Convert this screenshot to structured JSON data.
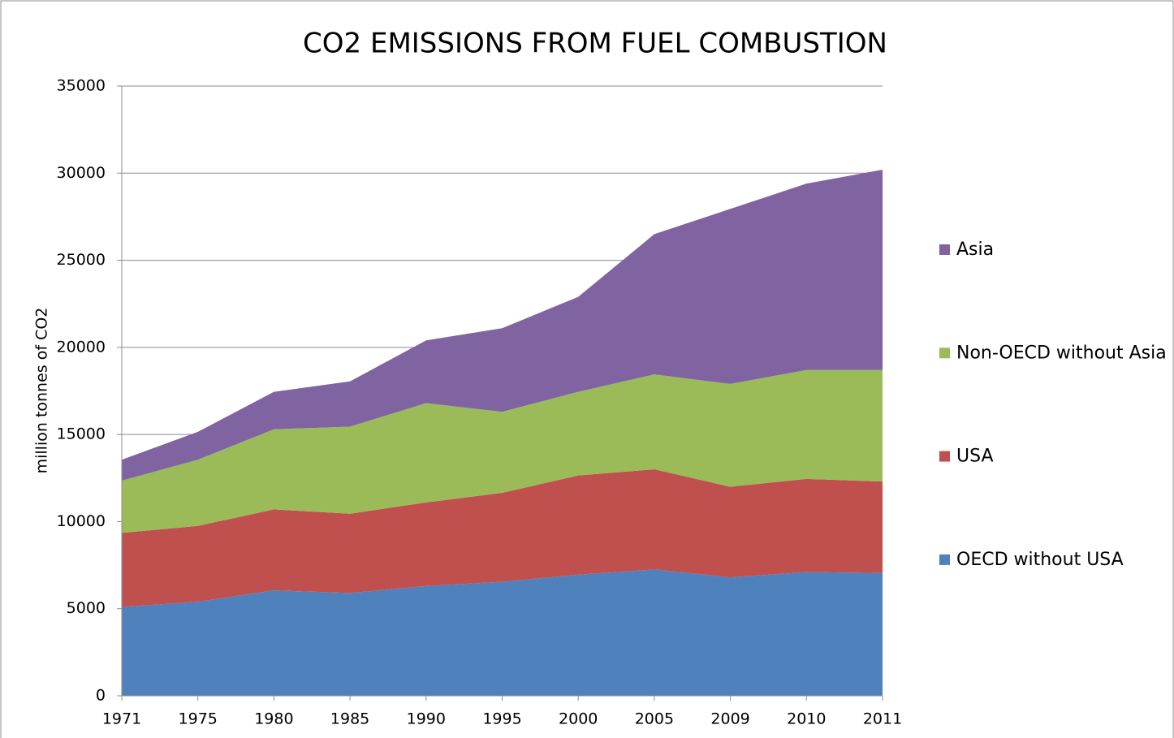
{
  "chart_data": {
    "type": "stacked_area",
    "title": "CO2 EMISSIONS FROM FUEL COMBUSTION",
    "y_label": "million tonnes of CO2",
    "categories": [
      "1971",
      "1975",
      "1980",
      "1985",
      "1990",
      "1995",
      "2000",
      "2005",
      "2009",
      "2010",
      "2011"
    ],
    "series": [
      {
        "name": "OECD without USA",
        "color": "#4f81bd",
        "values": [
          5100,
          5400,
          6050,
          5900,
          6300,
          6550,
          6950,
          7250,
          6800,
          7100,
          7050
        ]
      },
      {
        "name": "USA",
        "color": "#c0504d",
        "values": [
          4250,
          4350,
          4650,
          4550,
          4800,
          5100,
          5700,
          5750,
          5200,
          5350,
          5250
        ]
      },
      {
        "name": "Non-OECD without Asia",
        "color": "#9bbb59",
        "values": [
          3000,
          3800,
          4600,
          5000,
          5700,
          4650,
          4800,
          5450,
          5900,
          6250,
          6400
        ]
      },
      {
        "name": "Asia",
        "color": "#8064a2",
        "values": [
          1200,
          1600,
          2150,
          2600,
          3600,
          4800,
          5450,
          8050,
          10050,
          10700,
          11500
        ]
      }
    ],
    "ylim": [
      0,
      35000
    ],
    "yticks": [
      0,
      5000,
      10000,
      15000,
      20000,
      25000,
      30000,
      35000
    ],
    "grid": true,
    "legend": "right"
  }
}
